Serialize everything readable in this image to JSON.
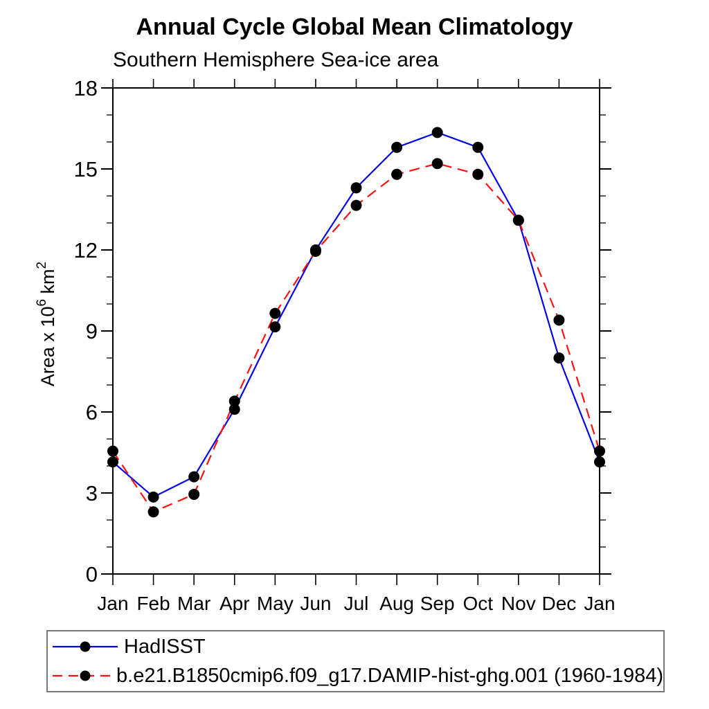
{
  "header": {
    "title": "Annual Cycle Global Mean Climatology",
    "subtitle": "Southern Hemisphere Sea-ice area"
  },
  "colors": {
    "hadisst_line": "#0404e8",
    "model_line": "#ff1010",
    "marker": "#000000",
    "axis": "#000000",
    "legend_border": "#777777"
  },
  "chart_data": {
    "type": "line",
    "title": "Annual Cycle Global Mean Climatology",
    "subtitle": "Southern Hemisphere Sea-ice area",
    "xlabel": "",
    "ylabel": "Area x 10^6 km^2",
    "ylabel_parts": {
      "base": "Area x 10",
      "exp": "6",
      "unit": " km",
      "unit_exp": "2"
    },
    "x_categories": [
      "Jan",
      "Feb",
      "Mar",
      "Apr",
      "May",
      "Jun",
      "Jul",
      "Aug",
      "Sep",
      "Oct",
      "Nov",
      "Dec",
      "Jan"
    ],
    "ylim": [
      0,
      18
    ],
    "y_major_step": 3,
    "y_minor_step": 1,
    "y_tick_labels": [
      "0",
      "3",
      "6",
      "9",
      "12",
      "15",
      "18"
    ],
    "grid": false,
    "legend_position": "bottom",
    "series": [
      {
        "name": "HadISST",
        "line_style": "solid",
        "color": "#0404e8",
        "marker": "black-dot",
        "values": [
          4.15,
          2.85,
          3.6,
          6.1,
          9.15,
          12.0,
          14.3,
          15.8,
          16.35,
          15.8,
          13.1,
          8.0,
          4.15
        ]
      },
      {
        "name": "b.e21.B1850cmip6.f09_g17.DAMIP-hist-ghg.001 (1960-1984)",
        "line_style": "dashed",
        "color": "#ff1010",
        "marker": "black-dot",
        "values": [
          4.55,
          2.3,
          2.95,
          6.4,
          9.65,
          11.95,
          13.65,
          14.8,
          15.2,
          14.8,
          13.1,
          9.4,
          4.55
        ]
      }
    ]
  }
}
